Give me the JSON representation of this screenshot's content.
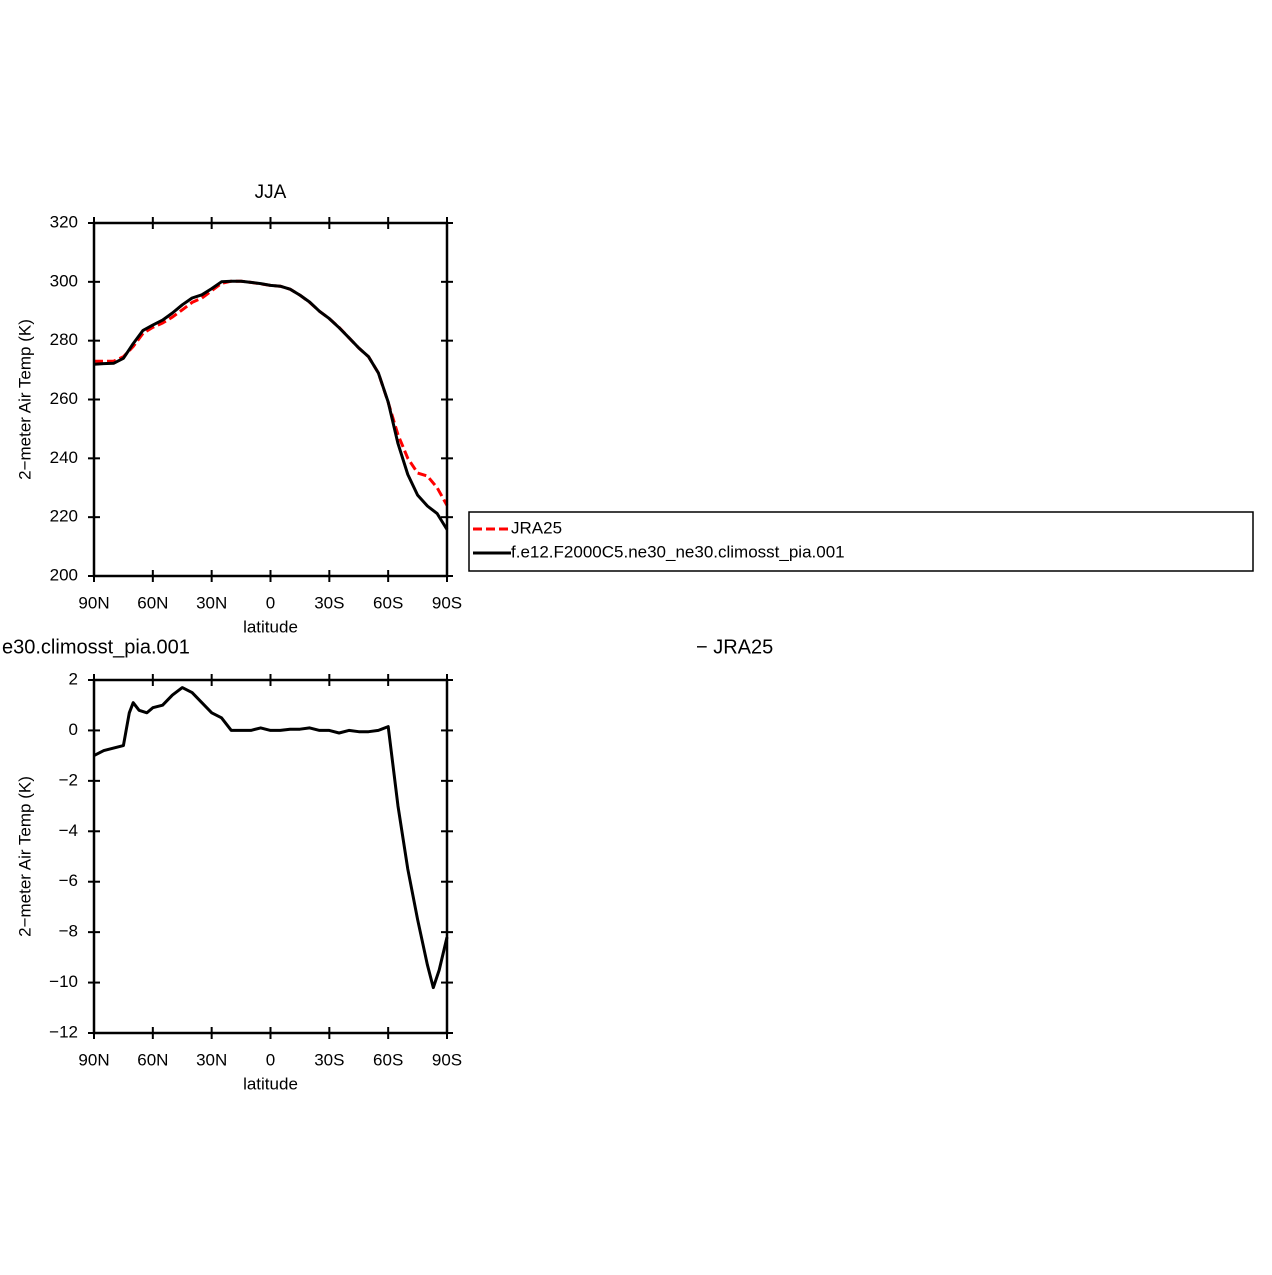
{
  "chart_data": [
    {
      "type": "line",
      "title": "JJA",
      "x_label": "latitude",
      "y_label": "2−meter Air Temp (K)",
      "x": [
        90,
        85,
        80,
        75,
        70,
        65,
        60,
        55,
        50,
        45,
        40,
        35,
        30,
        25,
        20,
        15,
        10,
        5,
        0,
        -5,
        -10,
        -15,
        -20,
        -25,
        -30,
        -35,
        -40,
        -45,
        -50,
        -55,
        -60,
        -65,
        -70,
        -75,
        -80,
        -85,
        -90
      ],
      "xlim": [
        90,
        -90
      ],
      "xticks": [
        {
          "value": 90,
          "label": "90N"
        },
        {
          "value": 60,
          "label": "60N"
        },
        {
          "value": 30,
          "label": "30N"
        },
        0,
        {
          "value": -30,
          "label": "30S"
        },
        {
          "value": -60,
          "label": "60S"
        },
        {
          "value": -90,
          "label": "90S"
        }
      ],
      "ylim": [
        200,
        320
      ],
      "yticks": [
        200,
        220,
        240,
        260,
        280,
        300,
        320
      ],
      "legend": "right",
      "series": [
        {
          "name": "JRA25",
          "color": "#ff0000",
          "dashed": true,
          "values": [
            273,
            273,
            273,
            274.5,
            278,
            282.5,
            284.5,
            286,
            288,
            290.5,
            293,
            294.5,
            297,
            299.5,
            300.2,
            300.2,
            299.8,
            299.3,
            298.8,
            298.5,
            297.5,
            295.5,
            293,
            290,
            287.5,
            284.5,
            281,
            277.5,
            274.5,
            269,
            259,
            248,
            240,
            235,
            234,
            230,
            224
          ]
        },
        {
          "name": "f.e12.F2000C5.ne30_ne30.climosst_pia.001",
          "color": "#000000",
          "dashed": false,
          "values": [
            272,
            272.2,
            272.3,
            274,
            279,
            283.5,
            285.3,
            287,
            289.4,
            292.2,
            294.5,
            295.6,
            297.7,
            300,
            300.2,
            300.2,
            299.8,
            299.4,
            298.8,
            298.5,
            297.5,
            295.5,
            293.1,
            290,
            287.5,
            284.4,
            281,
            277.5,
            274.5,
            269,
            259.1,
            245,
            234.5,
            227.5,
            223.8,
            221.2,
            215.8
          ]
        }
      ]
    },
    {
      "type": "line",
      "title_left": "e30.climosst_pia.001",
      "title_right": "− JRA25",
      "x_label": "latitude",
      "y_label": "2−meter Air Temp (K)",
      "x": [
        90,
        85,
        80,
        75,
        72,
        70,
        67,
        63,
        60,
        55,
        50,
        45,
        40,
        35,
        30,
        25,
        20,
        15,
        10,
        5,
        0,
        -5,
        -10,
        -15,
        -20,
        -25,
        -30,
        -35,
        -40,
        -45,
        -50,
        -55,
        -60,
        -65,
        -70,
        -75,
        -80,
        -83,
        -86,
        -90
      ],
      "xlim": [
        90,
        -90
      ],
      "xticks": [
        {
          "value": 90,
          "label": "90N"
        },
        {
          "value": 60,
          "label": "60N"
        },
        {
          "value": 30,
          "label": "30N"
        },
        0,
        {
          "value": -30,
          "label": "30S"
        },
        {
          "value": -60,
          "label": "60S"
        },
        {
          "value": -90,
          "label": "90S"
        }
      ],
      "ylim": [
        -12,
        2
      ],
      "yticks": [
        {
          "value": -12,
          "label": "−12"
        },
        {
          "value": -10,
          "label": "−10"
        },
        {
          "value": -8,
          "label": "−8"
        },
        {
          "value": -6,
          "label": "−6"
        },
        {
          "value": -4,
          "label": "−4"
        },
        {
          "value": -2,
          "label": "−2"
        },
        0,
        2
      ],
      "series": [
        {
          "color": "#000000",
          "dashed": false,
          "values": [
            -1,
            -0.8,
            -0.7,
            -0.6,
            0.7,
            1.1,
            0.8,
            0.7,
            0.9,
            1.0,
            1.4,
            1.7,
            1.5,
            1.1,
            0.7,
            0.5,
            0.0,
            0.0,
            0.0,
            0.1,
            0.0,
            0.0,
            0.05,
            0.05,
            0.1,
            0.0,
            0.0,
            -0.1,
            0.0,
            -0.05,
            -0.05,
            0.0,
            0.15,
            -3,
            -5.5,
            -7.5,
            -9.3,
            -10.2,
            -9.5,
            -8.2
          ]
        }
      ]
    }
  ]
}
